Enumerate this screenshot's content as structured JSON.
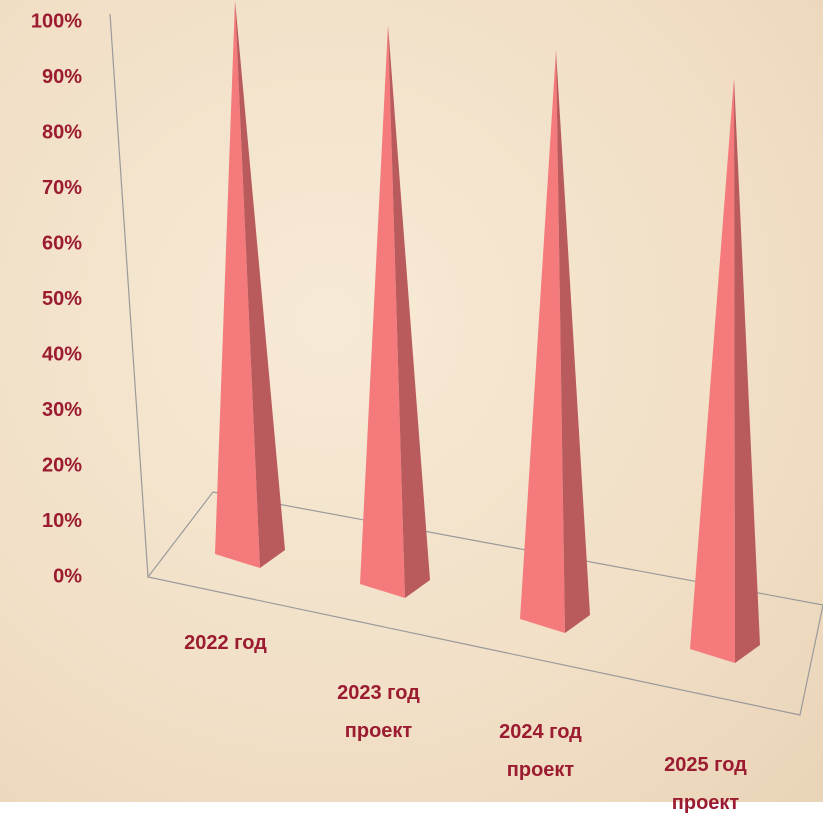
{
  "chart_data": {
    "type": "pyramid",
    "categories": [
      "2022 год",
      "2023 год проект",
      "2024 год проект",
      "2025 год проект"
    ],
    "values": [
      100,
      100,
      100,
      100
    ],
    "color": "#f47a7c",
    "ylim": [
      0,
      100
    ],
    "yticks": [
      {
        "value": 0,
        "label": "0%"
      },
      {
        "value": 10,
        "label": "10%"
      },
      {
        "value": 20,
        "label": "20%"
      },
      {
        "value": 30,
        "label": "30%"
      },
      {
        "value": 40,
        "label": "40%"
      },
      {
        "value": 50,
        "label": "50%"
      },
      {
        "value": 60,
        "label": "60%"
      },
      {
        "value": 70,
        "label": "70%"
      },
      {
        "value": 80,
        "label": "80%"
      },
      {
        "value": 90,
        "label": "90%"
      },
      {
        "value": 100,
        "label": "100%"
      }
    ]
  }
}
